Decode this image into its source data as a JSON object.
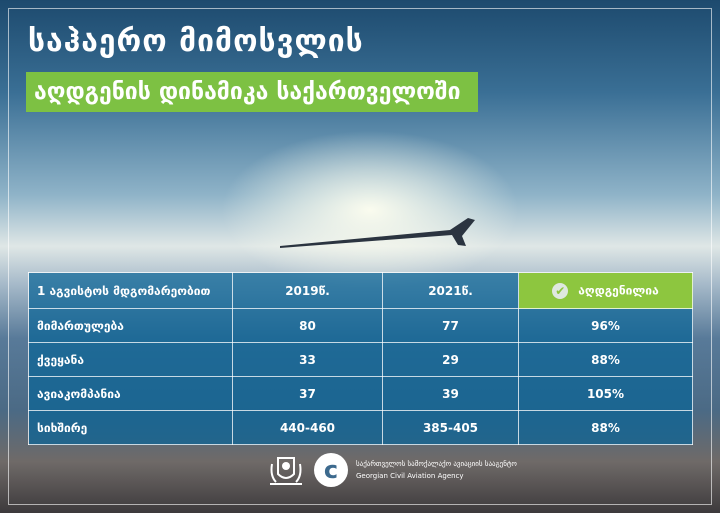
{
  "header": {
    "title": "საჰაერო მიმოსვლის",
    "subtitle": "აღდგენის დინამიკა საქართველოში"
  },
  "colors": {
    "accent_green": "#8dc63f",
    "table_blue": "#0a6496"
  },
  "table": {
    "headers": [
      "1 აგვისტოს მდგომარეობით",
      "2019წ.",
      "2021წ.",
      "აღდგენილია"
    ],
    "header_icon": "check-circle-icon",
    "rows": [
      [
        "მიმართულება",
        "80",
        "77",
        "96%"
      ],
      [
        "ქვეყანა",
        "33",
        "29",
        "88%"
      ],
      [
        "ავიაკომპანია",
        "37",
        "39",
        "105%"
      ],
      [
        "სიხშირე",
        "440-460",
        "385-405",
        "88%"
      ]
    ]
  },
  "footer": {
    "agency_ka": "საქართველოს სამოქალაქო ავიაციის სააგენტო",
    "agency_en": "Georgian Civil Aviation Agency",
    "logo_letter": "c"
  }
}
